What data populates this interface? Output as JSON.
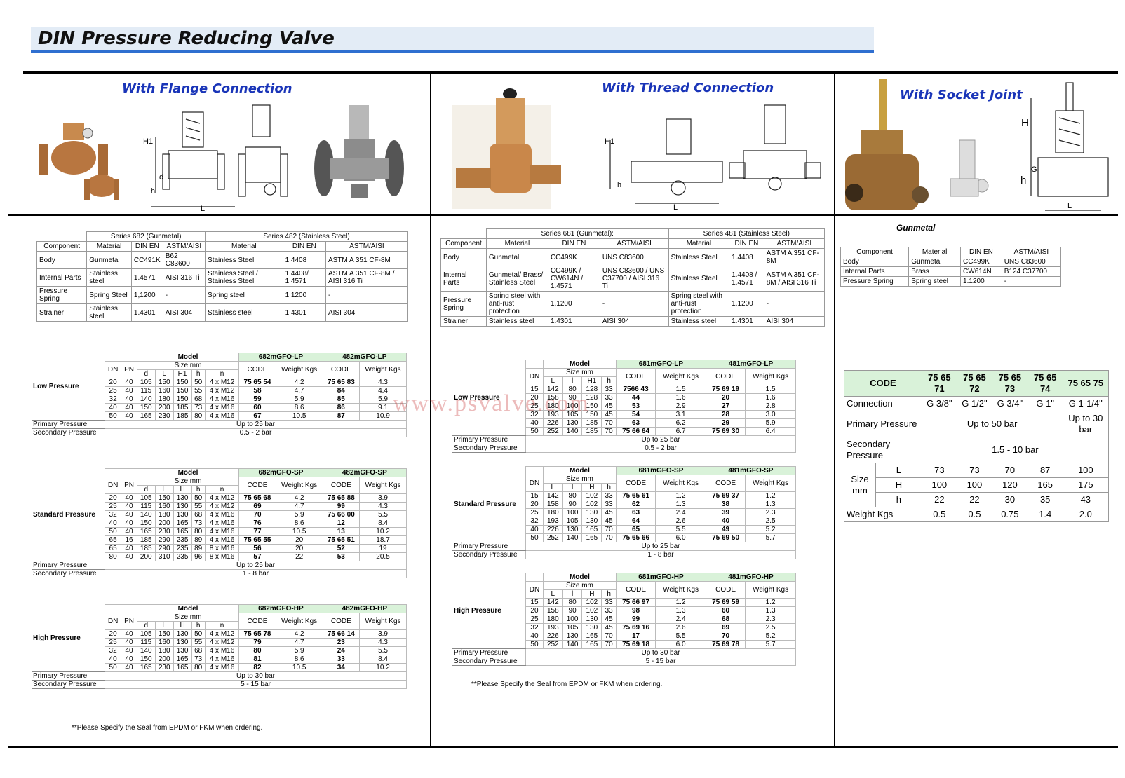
{
  "title": "DIN Pressure Reducing Valve",
  "watermark": "www.psvalve.com",
  "sections": {
    "flange": {
      "heading": "With Flange Connection",
      "diagram_labels": [
        "H1",
        "d",
        "h",
        "L"
      ]
    },
    "thread": {
      "heading": "With Thread Connection",
      "diagram_labels": [
        "H1",
        "h",
        "L"
      ]
    },
    "socket": {
      "heading": "With Socket Joint",
      "diagram_labels": [
        "H",
        "G",
        "h",
        "L"
      ]
    }
  },
  "materials_flange": {
    "series": [
      "Series 682 (Gunmetal)",
      "Series 482 (Stainless Steel)"
    ],
    "header": [
      "Component",
      "Material",
      "DIN EN",
      "ASTM/AISI",
      "Material",
      "DIN EN",
      "ASTM/AISI"
    ],
    "rows": [
      [
        "Body",
        "Gunmetal",
        "CC491K",
        "B62 C83600",
        "Stainless Steel",
        "1.4408",
        "ASTM A 351 CF-8M"
      ],
      [
        "Internal Parts",
        "Stainless steel",
        "1.4571",
        "AISI 316 Ti",
        "Stainless Steel / Stainless Steel",
        "1.4408/ 1.4571",
        "ASTM A 351 CF-8M / AISI 316 Ti"
      ],
      [
        "Pressure Spring",
        "Spring Steel",
        "1,1200",
        "-",
        "Spring steel",
        "1.1200",
        "-"
      ],
      [
        "Strainer",
        "Stainless steel",
        "1.4301",
        "AISI 304",
        "Stainless steel",
        "1.4301",
        "AISI 304"
      ]
    ]
  },
  "materials_thread": {
    "series": [
      "Series 681 (Gunmetal):",
      "Series 481 (Stainless Steel)"
    ],
    "header": [
      "Component",
      "Material",
      "DIN EN",
      "ASTM/AISI",
      "Material",
      "DIN EN",
      "ASTM/AISI"
    ],
    "rows": [
      [
        "Body",
        "Gunmetal",
        "CC499K",
        "UNS C83600",
        "Stainless Steel",
        "1.4408",
        "ASTM A 351 CF-8M"
      ],
      [
        "Internal Parts",
        "Gunmetal/ Brass/ Stainless Steel",
        "CC499K / CW614N / 1.4571",
        "UNS C83600 / UNS C37700 / AISI 316 Ti",
        "Stainless Steel",
        "1.4408 / 1.4571",
        "ASTM A 351 CF-8M / AISI 316 Ti"
      ],
      [
        "Pressure Spring",
        "Spring steel with anti-rust protection",
        "1.1200",
        "-",
        "Spring steel with anti-rust protection",
        "1.1200",
        "-"
      ],
      [
        "Strainer",
        "Stainless steel",
        "1.4301",
        "AISI 304",
        "Stainless steel",
        "1.4301",
        "AISI 304"
      ]
    ]
  },
  "materials_socket": {
    "title": "Gunmetal",
    "header": [
      "Component",
      "Material",
      "DIN EN",
      "ASTM/AISI"
    ],
    "rows": [
      [
        "Body",
        "Gunmetal",
        "CC499K",
        "UNS C83600"
      ],
      [
        "Internal Parts",
        "Brass",
        "CW614N",
        "B124 C37700"
      ],
      [
        "Pressure Spring",
        "Spring steel",
        "1.1200",
        "-"
      ]
    ]
  },
  "flange_tables": [
    {
      "label": "Low Pressure",
      "model_label": "Model",
      "models": [
        "682mGFO-LP",
        "482mGFO-LP"
      ],
      "size_label": "Size mm",
      "lead_columns": [
        "DN",
        "PN"
      ],
      "size_columns": [
        "d",
        "L",
        "H1",
        "h",
        "n"
      ],
      "value_columns": [
        "CODE",
        "Weight Kgs",
        "CODE",
        "Weight Kgs"
      ],
      "rows": [
        [
          "20",
          "40",
          "105",
          "150",
          "150",
          "50",
          "4 x M12",
          "75 65 54",
          "4.2",
          "75 65 83",
          "4.3"
        ],
        [
          "25",
          "40",
          "115",
          "160",
          "150",
          "55",
          "4 x M12",
          "58",
          "4.7",
          "84",
          "4.4"
        ],
        [
          "32",
          "40",
          "140",
          "180",
          "150",
          "68",
          "4 x M16",
          "59",
          "5.9",
          "85",
          "5.9"
        ],
        [
          "40",
          "40",
          "150",
          "200",
          "185",
          "73",
          "4 x M16",
          "60",
          "8.6",
          "86",
          "9.1"
        ],
        [
          "50",
          "40",
          "165",
          "230",
          "185",
          "80",
          "4 x M16",
          "67",
          "10.5",
          "87",
          "10.9"
        ]
      ],
      "primary": [
        "Primary Pressure",
        "Up to 25 bar"
      ],
      "secondary": [
        "Secondary Pressure",
        "0.5 - 2  bar"
      ]
    },
    {
      "label": "Standard Pressure",
      "model_label": "Model",
      "models": [
        "682mGFO-SP",
        "482mGFO-SP"
      ],
      "size_label": "Size mm",
      "lead_columns": [
        "DN",
        "PN"
      ],
      "size_columns": [
        "d",
        "L",
        "H",
        "h",
        "n"
      ],
      "value_columns": [
        "CODE",
        "Weight Kgs",
        "CODE",
        "Weight Kgs"
      ],
      "rows": [
        [
          "20",
          "40",
          "105",
          "150",
          "130",
          "50",
          "4 x M12",
          "75 65 68",
          "4.2",
          "75 65 88",
          "3.9"
        ],
        [
          "25",
          "40",
          "115",
          "160",
          "130",
          "55",
          "4 x M12",
          "69",
          "4.7",
          "99",
          "4.3"
        ],
        [
          "32",
          "40",
          "140",
          "180",
          "130",
          "68",
          "4 x M16",
          "70",
          "5.9",
          "75 66 00",
          "5.5"
        ],
        [
          "40",
          "40",
          "150",
          "200",
          "165",
          "73",
          "4 x M16",
          "76",
          "8.6",
          "12",
          "8.4"
        ],
        [
          "50",
          "40",
          "165",
          "230",
          "165",
          "80",
          "4 x M16",
          "77",
          "10.5",
          "13",
          "10.2"
        ],
        [
          "65",
          "16",
          "185",
          "290",
          "235",
          "89",
          "4 x M16",
          "75 65 55",
          "20",
          "75 65 51",
          "18.7"
        ],
        [
          "65",
          "40",
          "185",
          "290",
          "235",
          "89",
          "8 x M16",
          "56",
          "20",
          "52",
          "19"
        ],
        [
          "80",
          "40",
          "200",
          "310",
          "235",
          "96",
          "8 x M16",
          "57",
          "22",
          "53",
          "20.5"
        ]
      ],
      "primary": [
        "Primary Pressure",
        "Up to 25 bar"
      ],
      "secondary": [
        "Secondary Pressure",
        "1 - 8  bar"
      ]
    },
    {
      "label": "High Pressure",
      "model_label": "Model",
      "models": [
        "682mGFO-HP",
        "482mGFO-HP"
      ],
      "size_label": "Size mm",
      "lead_columns": [
        "DN",
        "PN"
      ],
      "size_columns": [
        "d",
        "L",
        "H",
        "h",
        "n"
      ],
      "value_columns": [
        "CODE",
        "Weight Kgs",
        "CODE",
        "Weight Kgs"
      ],
      "rows": [
        [
          "20",
          "40",
          "105",
          "150",
          "130",
          "50",
          "4 x M12",
          "75 65 78",
          "4.2",
          "75 66 14",
          "3.9"
        ],
        [
          "25",
          "40",
          "115",
          "160",
          "130",
          "55",
          "4 x M12",
          "79",
          "4.7",
          "23",
          "4.3"
        ],
        [
          "32",
          "40",
          "140",
          "180",
          "130",
          "68",
          "4 x M16",
          "80",
          "5.9",
          "24",
          "5.5"
        ],
        [
          "40",
          "40",
          "150",
          "200",
          "165",
          "73",
          "4 x M16",
          "81",
          "8.6",
          "33",
          "8.4"
        ],
        [
          "50",
          "40",
          "165",
          "230",
          "165",
          "80",
          "4 x M16",
          "82",
          "10.5",
          "34",
          "10.2"
        ]
      ],
      "primary": [
        "Primary Pressure",
        "Up to 30 bar"
      ],
      "secondary": [
        "Secondary Pressure",
        "5 - 15  bar"
      ]
    }
  ],
  "flange_note": "**Please Specify the Seal from EPDM or FKM when ordering.",
  "thread_tables": [
    {
      "label": "Low Pressure",
      "model_label": "Model",
      "models": [
        "681mGFO-LP",
        "481mGFO-LP"
      ],
      "size_label": "Size mm",
      "lead_columns": [
        "DN"
      ],
      "size_columns": [
        "L",
        "l",
        "H1",
        "h"
      ],
      "value_columns": [
        "CODE",
        "Weight Kgs",
        "CODE",
        "Weight Kgs"
      ],
      "rows": [
        [
          "15",
          "142",
          "80",
          "128",
          "33",
          "7566 43",
          "1.5",
          "75 69 19",
          "1.5"
        ],
        [
          "20",
          "158",
          "90",
          "128",
          "33",
          "44",
          "1.6",
          "20",
          "1.6"
        ],
        [
          "25",
          "180",
          "100",
          "150",
          "45",
          "53",
          "2.9",
          "27",
          "2.8"
        ],
        [
          "32",
          "193",
          "105",
          "150",
          "45",
          "54",
          "3.1",
          "28",
          "3.0"
        ],
        [
          "40",
          "226",
          "130",
          "185",
          "70",
          "63",
          "6.2",
          "29",
          "5.9"
        ],
        [
          "50",
          "252",
          "140",
          "185",
          "70",
          "75 66 64",
          "6.7",
          "75 69 30",
          "6.4"
        ]
      ],
      "primary": [
        "Primary Pressure",
        "Up to 25 bar"
      ],
      "secondary": [
        "Secondary Pressure",
        "0.5 - 2  bar"
      ]
    },
    {
      "label": "Standard Pressure",
      "model_label": "Model",
      "models": [
        "681mGFO-SP",
        "481mGFO-SP"
      ],
      "size_label": "Size mm",
      "lead_columns": [
        "DN"
      ],
      "size_columns": [
        "L",
        "l",
        "H",
        "h"
      ],
      "value_columns": [
        "CODE",
        "Weight Kgs",
        "CODE",
        "Weight Kgs"
      ],
      "rows": [
        [
          "15",
          "142",
          "80",
          "102",
          "33",
          "75 65 61",
          "1.2",
          "75 69 37",
          "1.2"
        ],
        [
          "20",
          "158",
          "90",
          "102",
          "33",
          "62",
          "1.3",
          "38",
          "1.3"
        ],
        [
          "25",
          "180",
          "100",
          "130",
          "45",
          "63",
          "2.4",
          "39",
          "2.3"
        ],
        [
          "32",
          "193",
          "105",
          "130",
          "45",
          "64",
          "2.6",
          "40",
          "2.5"
        ],
        [
          "40",
          "226",
          "130",
          "165",
          "70",
          "65",
          "5.5",
          "49",
          "5.2"
        ],
        [
          "50",
          "252",
          "140",
          "165",
          "70",
          "75 65 66",
          "6.0",
          "75 69 50",
          "5.7"
        ]
      ],
      "primary": [
        "Primary Pressure",
        "Up to 25 bar"
      ],
      "secondary": [
        "Secondary Pressure",
        "1 - 8  bar"
      ]
    },
    {
      "label": "High Pressure",
      "model_label": "Model",
      "models": [
        "681mGFO-HP",
        "481mGFO-HP"
      ],
      "size_label": "Size mm",
      "lead_columns": [
        "DN"
      ],
      "size_columns": [
        "L",
        "l",
        "H",
        "h"
      ],
      "value_columns": [
        "CODE",
        "Weight Kgs",
        "CODE",
        "Weight Kgs"
      ],
      "rows": [
        [
          "15",
          "142",
          "80",
          "102",
          "33",
          "75 66 97",
          "1.2",
          "75 69 59",
          "1.2"
        ],
        [
          "20",
          "158",
          "90",
          "102",
          "33",
          "98",
          "1.3",
          "60",
          "1.3"
        ],
        [
          "25",
          "180",
          "100",
          "130",
          "45",
          "99",
          "2.4",
          "68",
          "2.3"
        ],
        [
          "32",
          "193",
          "105",
          "130",
          "45",
          "75 69 16",
          "2.6",
          "69",
          "2.5"
        ],
        [
          "40",
          "226",
          "130",
          "165",
          "70",
          "17",
          "5.5",
          "70",
          "5.2"
        ],
        [
          "50",
          "252",
          "140",
          "165",
          "70",
          "75 69 18",
          "6.0",
          "75 69 78",
          "5.7"
        ]
      ],
      "primary": [
        "Primary Pressure",
        "Up to 30 bar"
      ],
      "secondary": [
        "Secondary Pressure",
        "5 - 15  bar"
      ]
    }
  ],
  "thread_note": "**Please Specify the Seal from EPDM or FKM when ordering.",
  "socket_spec": {
    "code_label": "CODE",
    "codes": [
      "75 65 71",
      "75 65 72",
      "75 65 73",
      "75 65 74",
      "75 65 75"
    ],
    "connection_label": "Connection",
    "connections": [
      "G 3/8\"",
      "G 1/2\"",
      "G 3/4\"",
      "G 1\"",
      "G 1-1/4\""
    ],
    "primary_label": "Primary Pressure",
    "primary": [
      "Up to 50 bar",
      "Up to 30 bar"
    ],
    "secondary_label": "Secondary Pressure",
    "secondary": "1.5 - 10 bar",
    "size_label": "Size mm",
    "sizes": [
      {
        "name": "L",
        "values": [
          "73",
          "73",
          "70",
          "87",
          "100"
        ]
      },
      {
        "name": "H",
        "values": [
          "100",
          "100",
          "120",
          "165",
          "175"
        ]
      },
      {
        "name": "h",
        "values": [
          "22",
          "22",
          "30",
          "35",
          "43"
        ]
      }
    ],
    "weight_label": "Weight Kgs",
    "weights": [
      "0.5",
      "0.5",
      "0.75",
      "1.4",
      "2.0"
    ]
  }
}
